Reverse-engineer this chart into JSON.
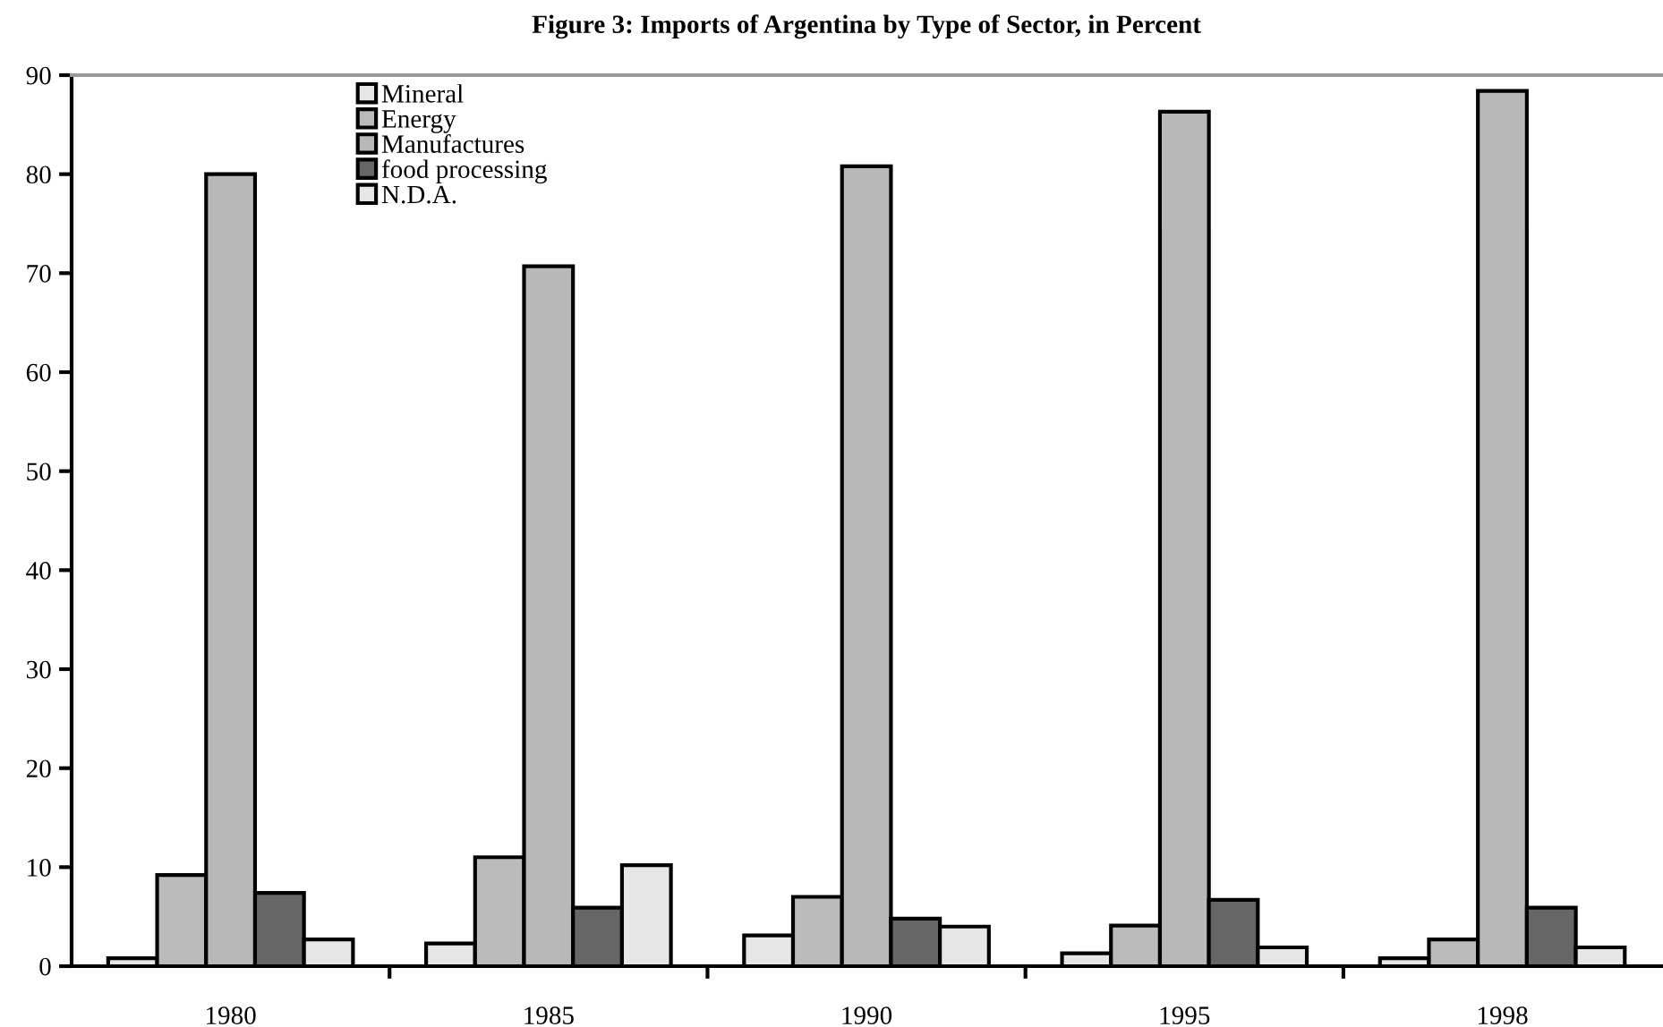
{
  "chart_data": {
    "type": "bar",
    "title": "Figure 3: Imports of Argentina by Type of Sector, in Percent",
    "categories": [
      "1980",
      "1985",
      "1990",
      "1995",
      "1998"
    ],
    "series": [
      {
        "name": "Mineral",
        "color": "#e6e6e6",
        "values": [
          0.8,
          2.3,
          3.1,
          1.3,
          0.8
        ]
      },
      {
        "name": "Energy",
        "color": "#bbbbbb",
        "values": [
          9.2,
          11.0,
          7.0,
          4.1,
          2.7
        ]
      },
      {
        "name": "Manufactures",
        "color": "#b8b8b8",
        "values": [
          80.0,
          70.7,
          80.8,
          86.3,
          88.4
        ]
      },
      {
        "name": "food processing",
        "color": "#666666",
        "values": [
          7.4,
          5.9,
          4.8,
          6.7,
          5.9
        ]
      },
      {
        "name": "N.D.A.",
        "color": "#e6e6e6",
        "values": [
          2.7,
          10.2,
          4.0,
          1.9,
          1.9
        ]
      }
    ],
    "ylim": [
      0,
      90
    ],
    "yticks": [
      0,
      10,
      20,
      30,
      40,
      50,
      60,
      70,
      80,
      90
    ],
    "legend": "top left",
    "grid": false
  }
}
